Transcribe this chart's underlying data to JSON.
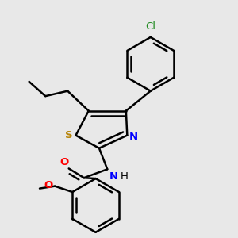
{
  "bg_color": "#e8e8e8",
  "bond_color": "#000000",
  "bond_width": 1.8,
  "figsize": [
    3.0,
    3.0
  ],
  "dpi": 100,
  "xlim": [
    0.0,
    1.0
  ],
  "ylim": [
    0.0,
    1.0
  ]
}
